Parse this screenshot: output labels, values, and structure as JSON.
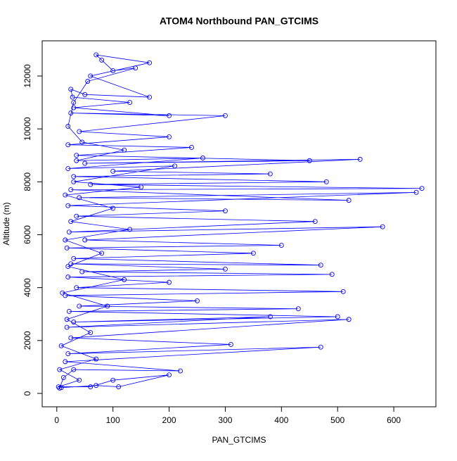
{
  "chart_data": {
    "type": "line",
    "markers": "circle",
    "title": "ATOM4 Northbound PAN_GTCIMS",
    "xlabel": "PAN_GTCIMS",
    "ylabel": "Altitude (m)",
    "color": "#0000ff",
    "x": [
      5,
      12,
      30,
      220,
      15,
      470,
      20,
      310,
      25,
      520,
      18,
      380,
      30,
      500,
      22,
      430,
      40,
      250,
      15,
      510,
      35,
      200,
      20,
      490,
      45,
      300,
      25,
      470,
      30,
      350,
      18,
      400,
      50,
      580,
      22,
      460,
      35,
      300,
      20,
      640,
      40,
      520,
      25,
      650,
      60,
      480,
      30,
      380,
      100,
      540,
      50,
      450,
      35,
      240,
      20,
      200,
      40,
      300,
      25,
      200,
      30,
      130,
      28,
      25,
      50,
      165,
      60,
      165,
      70,
      80,
      100,
      140,
      55,
      30,
      20,
      45,
      120,
      35,
      260,
      20,
      210,
      30,
      150,
      15,
      100,
      25,
      130,
      15,
      80,
      20,
      120,
      10,
      90,
      18,
      60,
      8,
      70,
      5,
      40,
      3,
      60,
      100,
      200,
      110,
      70,
      8
    ],
    "values": [
      200,
      600,
      900,
      850,
      1200,
      1750,
      1500,
      1850,
      2100,
      2800,
      2500,
      2900,
      2700,
      2900,
      3100,
      3200,
      3300,
      3500,
      3700,
      3850,
      4000,
      4200,
      4400,
      4500,
      4600,
      4700,
      4900,
      4850,
      5100,
      5300,
      5500,
      5600,
      5800,
      6300,
      6100,
      6500,
      6700,
      6900,
      7100,
      7600,
      7400,
      7300,
      7700,
      7750,
      7900,
      8000,
      8200,
      8300,
      8400,
      8850,
      8700,
      8800,
      9000,
      9300,
      9400,
      9700,
      9900,
      10500,
      10600,
      10500,
      10800,
      11000,
      11200,
      11500,
      11300,
      11200,
      12000,
      12500,
      12800,
      12600,
      12200,
      12300,
      11800,
      11000,
      10100,
      9500,
      9200,
      8800,
      8900,
      8500,
      8600,
      8000,
      7800,
      7500,
      7000,
      6500,
      6200,
      5800,
      5300,
      4800,
      4300,
      3800,
      3300,
      2800,
      2300,
      1800,
      1300,
      900,
      500,
      250,
      250,
      500,
      700,
      250,
      300,
      220
    ],
    "xlim": [
      -26,
      675
    ],
    "ylim": [
      -506,
      13330
    ],
    "xticks": [
      0,
      100,
      200,
      300,
      400,
      500,
      600
    ],
    "yticks": [
      0,
      2000,
      4000,
      6000,
      8000,
      10000,
      12000
    ]
  }
}
